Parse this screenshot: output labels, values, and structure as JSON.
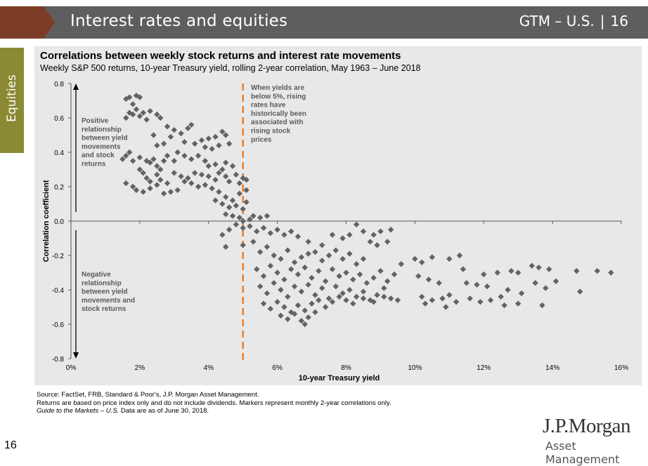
{
  "header": {
    "title": "Interest rates and equities",
    "guide": "GTM – U.S.",
    "separator": "|",
    "page": "16"
  },
  "side_tab": {
    "label": "Equities"
  },
  "footer": {
    "source": "Source: FactSet, FRB, Standard & Poor's, J.P. Morgan Asset Management.",
    "note": "Returns are based on price index only and do not include dividends. Markers represent monthly 2-year correlations only.",
    "guide_italic": "Guide to the Markets – U.S.",
    "guide_rest": " Data are as of June 30, 2018."
  },
  "page_number": "16",
  "logo": {
    "line1": "J.P.Morgan",
    "line2": "Asset Management"
  },
  "colors": {
    "header_bar": "#5e5e5e",
    "header_arrow": "#7a3c25",
    "side_tab": "#8a8a34",
    "marker": "#636363",
    "threshold_line": "#ef7d22",
    "panel_bg": "#e8e8e8"
  },
  "chart_data": {
    "type": "scatter",
    "title": "Correlations between weekly stock returns and interest rate movements",
    "subtitle": "Weekly S&P 500 returns, 10-year Treasury yield, rolling 2-year correlation, May 1963 – June 2018",
    "xlabel": "10-year Treasury yield",
    "ylabel": "Correlation coefficient",
    "xlim": [
      0,
      16
    ],
    "ylim": [
      -0.8,
      0.8
    ],
    "xticks": [
      0,
      2,
      4,
      6,
      8,
      10,
      12,
      14,
      16
    ],
    "xtick_labels": [
      "0%",
      "2%",
      "4%",
      "6%",
      "8%",
      "10%",
      "12%",
      "14%",
      "16%"
    ],
    "yticks": [
      0.8,
      0.6,
      0.4,
      0.2,
      0.0,
      -0.2,
      -0.4,
      -0.6,
      -0.8
    ],
    "ytick_labels": [
      "0.8",
      "0.6",
      "0.4",
      "0.2",
      "0.0",
      "-0.2",
      "-0.4",
      "-0.6",
      "-0.8"
    ],
    "threshold_x": 5,
    "annotations": {
      "threshold": "When yields are\nbelow 5%, rising\nrates have\nhistorically been\nassociated with\nrising stock\nprices",
      "positive": "Positive\nrelationship\nbetween yield\nmovements\nand stock\nreturns",
      "negative": "Negative\nrelationship\nbetween yield\nmovements and\nstock returns"
    },
    "points": [
      [
        1.6,
        0.71
      ],
      [
        1.7,
        0.72
      ],
      [
        1.9,
        0.73
      ],
      [
        2.0,
        0.72
      ],
      [
        1.8,
        0.68
      ],
      [
        1.7,
        0.63
      ],
      [
        1.8,
        0.62
      ],
      [
        1.9,
        0.65
      ],
      [
        2.0,
        0.61
      ],
      [
        2.1,
        0.63
      ],
      [
        2.3,
        0.64
      ],
      [
        2.5,
        0.62
      ],
      [
        2.6,
        0.6
      ],
      [
        2.2,
        0.59
      ],
      [
        1.6,
        0.6
      ],
      [
        2.8,
        0.55
      ],
      [
        3.0,
        0.53
      ],
      [
        3.2,
        0.51
      ],
      [
        3.4,
        0.54
      ],
      [
        3.5,
        0.56
      ],
      [
        2.4,
        0.5
      ],
      [
        2.9,
        0.49
      ],
      [
        2.5,
        0.44
      ],
      [
        2.7,
        0.45
      ],
      [
        3.3,
        0.46
      ],
      [
        3.6,
        0.45
      ],
      [
        3.8,
        0.47
      ],
      [
        4.0,
        0.48
      ],
      [
        4.2,
        0.49
      ],
      [
        4.4,
        0.52
      ],
      [
        4.5,
        0.5
      ],
      [
        4.3,
        0.44
      ],
      [
        4.1,
        0.42
      ],
      [
        3.9,
        0.43
      ],
      [
        4.6,
        0.45
      ],
      [
        1.5,
        0.36
      ],
      [
        1.6,
        0.38
      ],
      [
        1.7,
        0.4
      ],
      [
        1.8,
        0.35
      ],
      [
        2.0,
        0.37
      ],
      [
        2.2,
        0.35
      ],
      [
        2.3,
        0.34
      ],
      [
        2.4,
        0.36
      ],
      [
        2.5,
        0.32
      ],
      [
        2.6,
        0.3
      ],
      [
        2.7,
        0.35
      ],
      [
        2.8,
        0.38
      ],
      [
        3.0,
        0.35
      ],
      [
        3.1,
        0.4
      ],
      [
        3.3,
        0.38
      ],
      [
        3.5,
        0.36
      ],
      [
        3.7,
        0.38
      ],
      [
        3.9,
        0.35
      ],
      [
        4.0,
        0.32
      ],
      [
        4.2,
        0.33
      ],
      [
        4.4,
        0.3
      ],
      [
        4.5,
        0.34
      ],
      [
        4.7,
        0.32
      ],
      [
        2.0,
        0.3
      ],
      [
        2.1,
        0.28
      ],
      [
        2.2,
        0.25
      ],
      [
        2.3,
        0.23
      ],
      [
        2.5,
        0.27
      ],
      [
        2.6,
        0.24
      ],
      [
        2.8,
        0.22
      ],
      [
        3.0,
        0.28
      ],
      [
        3.2,
        0.26
      ],
      [
        3.4,
        0.25
      ],
      [
        3.6,
        0.28
      ],
      [
        3.8,
        0.27
      ],
      [
        4.0,
        0.26
      ],
      [
        4.2,
        0.24
      ],
      [
        4.3,
        0.28
      ],
      [
        4.5,
        0.26
      ],
      [
        4.6,
        0.23
      ],
      [
        4.8,
        0.27
      ],
      [
        4.9,
        0.22
      ],
      [
        5.0,
        0.25
      ],
      [
        5.1,
        0.24
      ],
      [
        1.6,
        0.22
      ],
      [
        1.8,
        0.2
      ],
      [
        1.9,
        0.18
      ],
      [
        2.1,
        0.17
      ],
      [
        2.3,
        0.19
      ],
      [
        2.5,
        0.21
      ],
      [
        2.7,
        0.16
      ],
      [
        2.9,
        0.17
      ],
      [
        3.1,
        0.18
      ],
      [
        3.3,
        0.23
      ],
      [
        3.5,
        0.22
      ],
      [
        3.7,
        0.2
      ],
      [
        3.9,
        0.21
      ],
      [
        4.1,
        0.19
      ],
      [
        4.3,
        0.17
      ],
      [
        4.5,
        0.14
      ],
      [
        4.7,
        0.12
      ],
      [
        4.9,
        0.16
      ],
      [
        5.1,
        0.18
      ],
      [
        4.2,
        0.12
      ],
      [
        4.4,
        0.1
      ],
      [
        4.6,
        0.08
      ],
      [
        4.8,
        0.09
      ],
      [
        5.0,
        0.07
      ],
      [
        5.1,
        0.11
      ],
      [
        4.5,
        0.04
      ],
      [
        4.7,
        0.03
      ],
      [
        4.9,
        0.02
      ],
      [
        5.0,
        0.0
      ],
      [
        5.2,
        0.01
      ],
      [
        5.3,
        0.03
      ],
      [
        5.5,
        0.02
      ],
      [
        5.7,
        0.03
      ],
      [
        4.4,
        -0.08
      ],
      [
        4.6,
        -0.05
      ],
      [
        4.8,
        -0.02
      ],
      [
        5.0,
        -0.04
      ],
      [
        5.2,
        -0.03
      ],
      [
        5.4,
        -0.06
      ],
      [
        5.6,
        -0.04
      ],
      [
        5.8,
        -0.07
      ],
      [
        6.0,
        -0.05
      ],
      [
        6.2,
        -0.08
      ],
      [
        6.4,
        -0.06
      ],
      [
        6.6,
        -0.09
      ],
      [
        6.9,
        -0.12
      ],
      [
        7.3,
        -0.14
      ],
      [
        7.6,
        -0.08
      ],
      [
        7.9,
        -0.1
      ],
      [
        8.1,
        -0.08
      ],
      [
        8.3,
        -0.02
      ],
      [
        8.5,
        -0.06
      ],
      [
        8.8,
        -0.08
      ],
      [
        9.0,
        -0.06
      ],
      [
        9.3,
        -0.05
      ],
      [
        9.2,
        -0.12
      ],
      [
        8.9,
        -0.14
      ],
      [
        8.7,
        -0.12
      ],
      [
        4.5,
        -0.15
      ],
      [
        5.0,
        -0.14
      ],
      [
        5.3,
        -0.12
      ],
      [
        5.5,
        -0.18
      ],
      [
        5.7,
        -0.15
      ],
      [
        5.9,
        -0.2
      ],
      [
        6.1,
        -0.22
      ],
      [
        6.3,
        -0.17
      ],
      [
        6.5,
        -0.24
      ],
      [
        6.7,
        -0.21
      ],
      [
        6.9,
        -0.19
      ],
      [
        7.1,
        -0.18
      ],
      [
        7.3,
        -0.23
      ],
      [
        7.5,
        -0.2
      ],
      [
        7.7,
        -0.17
      ],
      [
        7.9,
        -0.22
      ],
      [
        8.1,
        -0.19
      ],
      [
        8.3,
        -0.25
      ],
      [
        8.5,
        -0.22
      ],
      [
        5.4,
        -0.28
      ],
      [
        5.6,
        -0.32
      ],
      [
        5.8,
        -0.26
      ],
      [
        6.0,
        -0.3
      ],
      [
        6.2,
        -0.34
      ],
      [
        6.4,
        -0.28
      ],
      [
        6.6,
        -0.31
      ],
      [
        6.8,
        -0.27
      ],
      [
        7.0,
        -0.33
      ],
      [
        7.2,
        -0.29
      ],
      [
        7.4,
        -0.35
      ],
      [
        7.6,
        -0.28
      ],
      [
        7.8,
        -0.32
      ],
      [
        8.0,
        -0.3
      ],
      [
        8.2,
        -0.34
      ],
      [
        8.4,
        -0.31
      ],
      [
        8.6,
        -0.36
      ],
      [
        8.8,
        -0.33
      ],
      [
        9.0,
        -0.29
      ],
      [
        9.2,
        -0.35
      ],
      [
        9.4,
        -0.31
      ],
      [
        9.6,
        -0.25
      ],
      [
        5.5,
        -0.38
      ],
      [
        5.7,
        -0.42
      ],
      [
        5.9,
        -0.36
      ],
      [
        6.1,
        -0.4
      ],
      [
        6.3,
        -0.44
      ],
      [
        6.5,
        -0.38
      ],
      [
        6.7,
        -0.41
      ],
      [
        6.9,
        -0.37
      ],
      [
        7.1,
        -0.43
      ],
      [
        7.3,
        -0.39
      ],
      [
        7.5,
        -0.45
      ],
      [
        7.7,
        -0.38
      ],
      [
        7.9,
        -0.42
      ],
      [
        8.1,
        -0.4
      ],
      [
        8.3,
        -0.44
      ],
      [
        8.5,
        -0.41
      ],
      [
        8.7,
        -0.46
      ],
      [
        8.9,
        -0.43
      ],
      [
        9.1,
        -0.39
      ],
      [
        9.3,
        -0.45
      ],
      [
        5.6,
        -0.48
      ],
      [
        5.8,
        -0.51
      ],
      [
        6.0,
        -0.47
      ],
      [
        6.2,
        -0.5
      ],
      [
        6.4,
        -0.53
      ],
      [
        6.6,
        -0.49
      ],
      [
        6.8,
        -0.52
      ],
      [
        7.0,
        -0.48
      ],
      [
        7.2,
        -0.46
      ],
      [
        7.4,
        -0.5
      ],
      [
        7.6,
        -0.47
      ],
      [
        7.8,
        -0.44
      ],
      [
        8.0,
        -0.46
      ],
      [
        8.2,
        -0.48
      ],
      [
        8.5,
        -0.45
      ],
      [
        8.8,
        -0.47
      ],
      [
        9.1,
        -0.44
      ],
      [
        9.5,
        -0.46
      ],
      [
        6.1,
        -0.55
      ],
      [
        6.3,
        -0.57
      ],
      [
        6.5,
        -0.54
      ],
      [
        6.7,
        -0.58
      ],
      [
        6.9,
        -0.56
      ],
      [
        7.1,
        -0.53
      ],
      [
        6.8,
        -0.6
      ],
      [
        10.0,
        -0.22
      ],
      [
        10.2,
        -0.24
      ],
      [
        10.5,
        -0.21
      ],
      [
        11.0,
        -0.22
      ],
      [
        10.1,
        -0.32
      ],
      [
        10.4,
        -0.34
      ],
      [
        10.7,
        -0.36
      ],
      [
        10.2,
        -0.44
      ],
      [
        10.5,
        -0.46
      ],
      [
        10.8,
        -0.45
      ],
      [
        11.0,
        -0.43
      ],
      [
        11.2,
        -0.47
      ],
      [
        10.3,
        -0.48
      ],
      [
        10.9,
        -0.5
      ],
      [
        11.5,
        -0.36
      ],
      [
        11.8,
        -0.37
      ],
      [
        12.1,
        -0.38
      ],
      [
        11.6,
        -0.45
      ],
      [
        11.9,
        -0.47
      ],
      [
        12.2,
        -0.46
      ],
      [
        12.5,
        -0.44
      ],
      [
        12.0,
        -0.31
      ],
      [
        12.4,
        -0.3
      ],
      [
        12.8,
        -0.29
      ],
      [
        13.0,
        -0.3
      ],
      [
        12.7,
        -0.4
      ],
      [
        13.1,
        -0.42
      ],
      [
        12.6,
        -0.49
      ],
      [
        13.0,
        -0.48
      ],
      [
        13.4,
        -0.26
      ],
      [
        13.6,
        -0.27
      ],
      [
        13.9,
        -0.28
      ],
      [
        13.5,
        -0.36
      ],
      [
        13.8,
        -0.39
      ],
      [
        14.1,
        -0.35
      ],
      [
        14.7,
        -0.29
      ],
      [
        15.3,
        -0.29
      ],
      [
        15.7,
        -0.3
      ],
      [
        14.8,
        -0.41
      ],
      [
        13.7,
        -0.49
      ],
      [
        11.3,
        -0.2
      ],
      [
        11.4,
        -0.28
      ]
    ]
  }
}
